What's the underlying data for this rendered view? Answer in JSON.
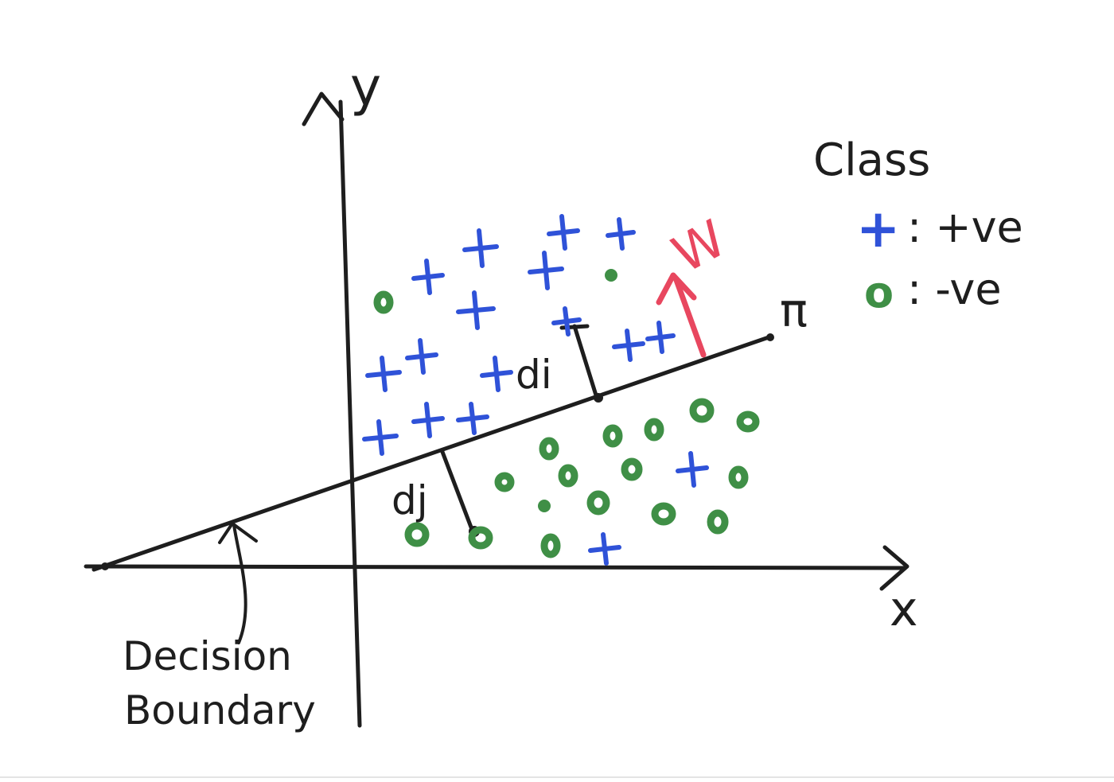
{
  "axes": {
    "x_label": "x",
    "y_label": "y"
  },
  "hyperplane": {
    "label": "π"
  },
  "normal_vector": {
    "label": "W",
    "color": "#e8475f"
  },
  "distances": {
    "positive_label": "di",
    "negative_label": "dj"
  },
  "annotation": {
    "line1": "Decision",
    "line2": "Boundary"
  },
  "legend": {
    "title": "Class",
    "positive": {
      "symbol": "+",
      "text": ": +ve",
      "color": "#2f52d8"
    },
    "negative": {
      "symbol": "o",
      "text": ": -ve",
      "color": "#3f8f46"
    }
  }
}
